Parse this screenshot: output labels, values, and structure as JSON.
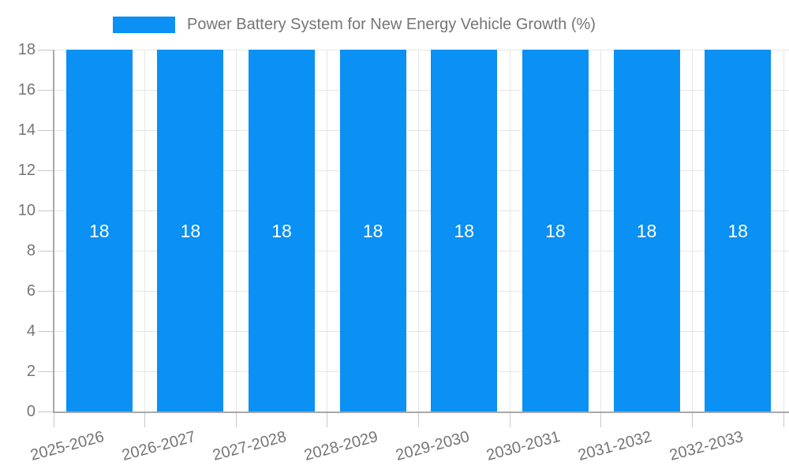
{
  "legend": {
    "label": "Power Battery System for New Energy Vehicle Growth (%)"
  },
  "chart_data": {
    "type": "bar",
    "title": "Power Battery System for New Energy Vehicle Growth (%)",
    "categories": [
      "2025-2026",
      "2026-2027",
      "2027-2028",
      "2028-2029",
      "2029-2030",
      "2030-2031",
      "2031-2032",
      "2032-2033"
    ],
    "series": [
      {
        "name": "Power Battery System for New Energy Vehicle Growth (%)",
        "values": [
          18,
          18,
          18,
          18,
          18,
          18,
          18,
          18
        ]
      }
    ],
    "bar_value_labels": [
      "18",
      "18",
      "18",
      "18",
      "18",
      "18",
      "18",
      "18"
    ],
    "xlabel": "",
    "ylabel": "",
    "ylim": [
      0,
      18
    ],
    "yticks": [
      0,
      2,
      4,
      6,
      8,
      10,
      12,
      14,
      16,
      18
    ],
    "grid": true,
    "legend_position": "top",
    "x_tick_rotation_deg": -15,
    "colors": {
      "bar": "#0b90f3",
      "grid": "#e6e6e6",
      "axis": "#a9a9a9",
      "tick": "#c8c8c8",
      "text": "#757575",
      "bar_label": "#ffffff",
      "background": "#ffffff"
    }
  }
}
